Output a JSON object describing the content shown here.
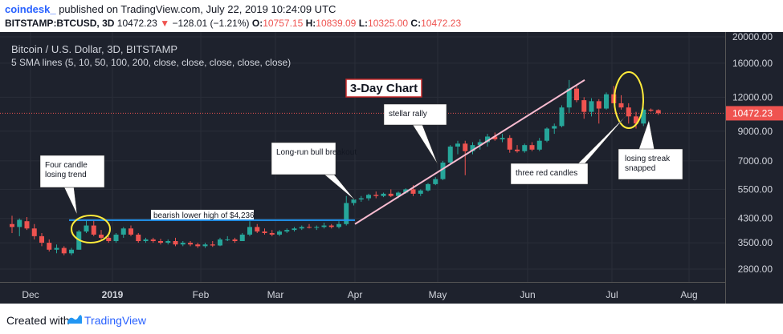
{
  "header": {
    "user": "coindesk_",
    "published": " published on TradingView.com, July 22, 2019 10:24:09 UTC",
    "symbol": "BITSTAMP:BTCUSD, 3D",
    "last": "10472.23",
    "change": "−128.01 (−1.21%)",
    "o_label": "O:",
    "o_value": "10757.15",
    "h_label": "H:",
    "h_value": "10839.09",
    "l_label": "L:",
    "l_value": "10325.00",
    "c_label": "C:",
    "c_value": "10472.23"
  },
  "legend": {
    "title": "Bitcoin / U.S. Dollar, 3D, BITSTAMP",
    "sma": "5 SMA lines (5, 10, 50, 100, 200, close, close, close, close, close)"
  },
  "footer": {
    "created": "Created with",
    "brand": "TradingView"
  },
  "colors": {
    "up": "#26a69a",
    "down": "#ef5350",
    "background": "#1e222d",
    "resistance": "#2196f3",
    "trend": "#f8bbd0",
    "highlight": "#ffeb3b"
  },
  "chart_data": {
    "type": "candlestick",
    "title": "3-Day Chart",
    "y_scale": "log",
    "y_ticks": [
      "20000.00",
      "16000.00",
      "12000.00",
      "9000.00",
      "7000.00",
      "5500.00",
      "4300.00",
      "3500.00",
      "2800.00"
    ],
    "x_ticks": [
      "Dec",
      "2019",
      "Feb",
      "Mar",
      "Apr",
      "May",
      "Jun",
      "Jul",
      "Aug"
    ],
    "last_price_label": "10472.23",
    "ylim": [
      2500,
      21500
    ],
    "candles": [
      {
        "o": 4100,
        "h": 4400,
        "l": 3800,
        "c": 4000
      },
      {
        "o": 4000,
        "h": 4300,
        "l": 3700,
        "c": 4250
      },
      {
        "o": 4200,
        "h": 4350,
        "l": 3900,
        "c": 3950
      },
      {
        "o": 3950,
        "h": 4100,
        "l": 3600,
        "c": 3700
      },
      {
        "o": 3700,
        "h": 3800,
        "l": 3400,
        "c": 3500
      },
      {
        "o": 3500,
        "h": 3600,
        "l": 3250,
        "c": 3300
      },
      {
        "o": 3300,
        "h": 3450,
        "l": 3200,
        "c": 3350
      },
      {
        "o": 3350,
        "h": 3400,
        "l": 3150,
        "c": 3200
      },
      {
        "o": 3200,
        "h": 3350,
        "l": 3150,
        "c": 3300
      },
      {
        "o": 3300,
        "h": 3900,
        "l": 3300,
        "c": 3850
      },
      {
        "o": 3850,
        "h": 4250,
        "l": 3800,
        "c": 4050
      },
      {
        "o": 4050,
        "h": 4236,
        "l": 3700,
        "c": 3750
      },
      {
        "o": 3750,
        "h": 3900,
        "l": 3600,
        "c": 3650
      },
      {
        "o": 3650,
        "h": 3700,
        "l": 3500,
        "c": 3550
      },
      {
        "o": 3550,
        "h": 3800,
        "l": 3500,
        "c": 3750
      },
      {
        "o": 3750,
        "h": 4000,
        "l": 3650,
        "c": 3950
      },
      {
        "o": 3950,
        "h": 4050,
        "l": 3700,
        "c": 3750
      },
      {
        "o": 3750,
        "h": 3800,
        "l": 3500,
        "c": 3550
      },
      {
        "o": 3550,
        "h": 3650,
        "l": 3500,
        "c": 3600
      },
      {
        "o": 3600,
        "h": 3650,
        "l": 3500,
        "c": 3550
      },
      {
        "o": 3550,
        "h": 3620,
        "l": 3450,
        "c": 3500
      },
      {
        "o": 3500,
        "h": 3600,
        "l": 3450,
        "c": 3550
      },
      {
        "o": 3550,
        "h": 3650,
        "l": 3400,
        "c": 3450
      },
      {
        "o": 3450,
        "h": 3550,
        "l": 3400,
        "c": 3500
      },
      {
        "o": 3500,
        "h": 3550,
        "l": 3400,
        "c": 3450
      },
      {
        "o": 3450,
        "h": 3500,
        "l": 3350,
        "c": 3400
      },
      {
        "o": 3400,
        "h": 3500,
        "l": 3350,
        "c": 3450
      },
      {
        "o": 3450,
        "h": 3550,
        "l": 3380,
        "c": 3420
      },
      {
        "o": 3420,
        "h": 3650,
        "l": 3400,
        "c": 3600
      },
      {
        "o": 3600,
        "h": 3700,
        "l": 3550,
        "c": 3600
      },
      {
        "o": 3600,
        "h": 3650,
        "l": 3500,
        "c": 3550
      },
      {
        "o": 3550,
        "h": 3800,
        "l": 3550,
        "c": 3750
      },
      {
        "o": 3750,
        "h": 4200,
        "l": 3700,
        "c": 4000
      },
      {
        "o": 4000,
        "h": 4100,
        "l": 3800,
        "c": 3850
      },
      {
        "o": 3850,
        "h": 3950,
        "l": 3750,
        "c": 3800
      },
      {
        "o": 3800,
        "h": 3900,
        "l": 3700,
        "c": 3750
      },
      {
        "o": 3750,
        "h": 3900,
        "l": 3700,
        "c": 3850
      },
      {
        "o": 3850,
        "h": 3950,
        "l": 3800,
        "c": 3900
      },
      {
        "o": 3900,
        "h": 4000,
        "l": 3850,
        "c": 3950
      },
      {
        "o": 3950,
        "h": 4050,
        "l": 3900,
        "c": 4000
      },
      {
        "o": 4000,
        "h": 4100,
        "l": 3950,
        "c": 3980
      },
      {
        "o": 3980,
        "h": 4050,
        "l": 3900,
        "c": 4000
      },
      {
        "o": 4000,
        "h": 4150,
        "l": 3950,
        "c": 4050
      },
      {
        "o": 4050,
        "h": 4100,
        "l": 3950,
        "c": 4000
      },
      {
        "o": 4000,
        "h": 4200,
        "l": 3950,
        "c": 4100
      },
      {
        "o": 4100,
        "h": 5200,
        "l": 4050,
        "c": 4900
      },
      {
        "o": 4900,
        "h": 5100,
        "l": 4800,
        "c": 5050
      },
      {
        "o": 5050,
        "h": 5200,
        "l": 4950,
        "c": 5100
      },
      {
        "o": 5100,
        "h": 5300,
        "l": 5000,
        "c": 5250
      },
      {
        "o": 5250,
        "h": 5400,
        "l": 5100,
        "c": 5200
      },
      {
        "o": 5200,
        "h": 5350,
        "l": 5150,
        "c": 5300
      },
      {
        "o": 5300,
        "h": 5500,
        "l": 5150,
        "c": 5200
      },
      {
        "o": 5200,
        "h": 5400,
        "l": 5100,
        "c": 5350
      },
      {
        "o": 5350,
        "h": 5550,
        "l": 5300,
        "c": 5500
      },
      {
        "o": 5500,
        "h": 5700,
        "l": 5200,
        "c": 5300
      },
      {
        "o": 5300,
        "h": 5500,
        "l": 5200,
        "c": 5450
      },
      {
        "o": 5450,
        "h": 5800,
        "l": 5400,
        "c": 5750
      },
      {
        "o": 5750,
        "h": 6100,
        "l": 5700,
        "c": 6000
      },
      {
        "o": 6000,
        "h": 7000,
        "l": 5950,
        "c": 6900
      },
      {
        "o": 6900,
        "h": 8000,
        "l": 6800,
        "c": 7900
      },
      {
        "o": 7900,
        "h": 8300,
        "l": 7400,
        "c": 8100
      },
      {
        "o": 8100,
        "h": 8300,
        "l": 6200,
        "c": 7600
      },
      {
        "o": 7600,
        "h": 8200,
        "l": 7400,
        "c": 8000
      },
      {
        "o": 8000,
        "h": 8400,
        "l": 7700,
        "c": 8200
      },
      {
        "o": 8200,
        "h": 8800,
        "l": 7900,
        "c": 8600
      },
      {
        "o": 8600,
        "h": 8900,
        "l": 8300,
        "c": 8400
      },
      {
        "o": 8400,
        "h": 8800,
        "l": 8200,
        "c": 8500
      },
      {
        "o": 8500,
        "h": 8700,
        "l": 7500,
        "c": 7700
      },
      {
        "o": 7700,
        "h": 8000,
        "l": 7500,
        "c": 7600
      },
      {
        "o": 7600,
        "h": 8100,
        "l": 7500,
        "c": 8000
      },
      {
        "o": 8000,
        "h": 8200,
        "l": 7600,
        "c": 7700
      },
      {
        "o": 7700,
        "h": 8500,
        "l": 7600,
        "c": 8300
      },
      {
        "o": 8300,
        "h": 9300,
        "l": 8200,
        "c": 9200
      },
      {
        "o": 9200,
        "h": 9600,
        "l": 8800,
        "c": 9400
      },
      {
        "o": 9400,
        "h": 11200,
        "l": 9300,
        "c": 11000
      },
      {
        "o": 11000,
        "h": 13880,
        "l": 10500,
        "c": 12900
      },
      {
        "o": 12900,
        "h": 13200,
        "l": 11500,
        "c": 11700
      },
      {
        "o": 11700,
        "h": 12000,
        "l": 10000,
        "c": 10600
      },
      {
        "o": 10600,
        "h": 11900,
        "l": 10200,
        "c": 11600
      },
      {
        "o": 11600,
        "h": 11800,
        "l": 9600,
        "c": 10900
      },
      {
        "o": 10900,
        "h": 12500,
        "l": 10800,
        "c": 12300
      },
      {
        "o": 12300,
        "h": 13200,
        "l": 11500,
        "c": 11400
      },
      {
        "o": 11400,
        "h": 12200,
        "l": 10800,
        "c": 11000
      },
      {
        "o": 11000,
        "h": 11400,
        "l": 9600,
        "c": 10200
      },
      {
        "o": 10200,
        "h": 10600,
        "l": 9200,
        "c": 9600
      },
      {
        "o": 9600,
        "h": 11000,
        "l": 9400,
        "c": 10800
      },
      {
        "o": 10800,
        "h": 10900,
        "l": 10600,
        "c": 10700
      },
      {
        "o": 10757,
        "h": 10839,
        "l": 10325,
        "c": 10472
      }
    ]
  },
  "annotations": {
    "chart_title": "3-Day Chart",
    "four_candle": "Four candle losing trend",
    "bearish_high": "bearish lower high of $4,236",
    "long_run": "Long-run bull breakout",
    "stellar": "stellar rally",
    "three_red": "three red candles",
    "losing_streak": "losing streak snapped"
  }
}
